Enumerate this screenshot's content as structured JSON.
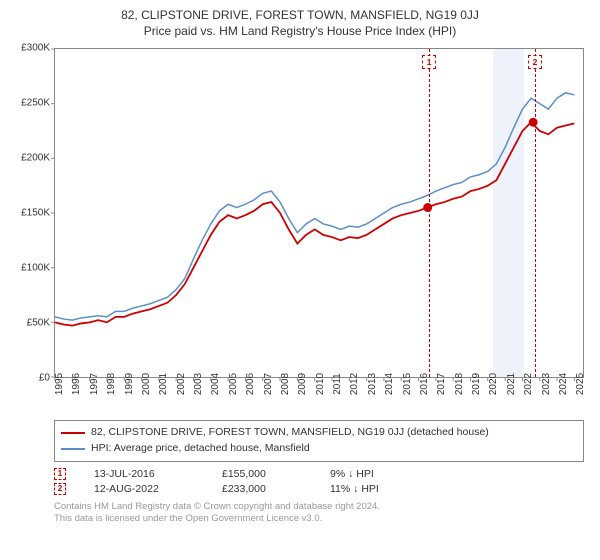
{
  "title": "82, CLIPSTONE DRIVE, FOREST TOWN, MANSFIELD, NG19 0JJ",
  "subtitle": "Price paid vs. HM Land Registry's House Price Index (HPI)",
  "chart": {
    "type": "line",
    "background_color": "#ffffff",
    "axis_color": "#888888",
    "x_years": [
      1995,
      1996,
      1997,
      1998,
      1999,
      2000,
      2001,
      2002,
      2003,
      2004,
      2005,
      2006,
      2007,
      2008,
      2009,
      2010,
      2011,
      2012,
      2013,
      2014,
      2015,
      2016,
      2017,
      2018,
      2019,
      2020,
      2021,
      2022,
      2023,
      2024,
      2025
    ],
    "xlim": [
      1995,
      2025.5
    ],
    "ylim": [
      0,
      300000
    ],
    "ytick_step": 50000,
    "yticks": [
      "£0",
      "£50K",
      "£100K",
      "£150K",
      "£200K",
      "£250K",
      "£300K"
    ],
    "highlight_band": {
      "start": 2020.2,
      "end": 2022.0,
      "color": "#eef3fb"
    },
    "series": [
      {
        "name": "82, CLIPSTONE DRIVE, FOREST TOWN, MANSFIELD, NG19 0JJ (detached house)",
        "color": "#cc0000",
        "width": 1.8,
        "data": [
          [
            1995,
            50000
          ],
          [
            1995.5,
            48000
          ],
          [
            1996,
            47000
          ],
          [
            1996.5,
            49000
          ],
          [
            1997,
            50000
          ],
          [
            1997.5,
            52000
          ],
          [
            1998,
            50000
          ],
          [
            1998.5,
            55000
          ],
          [
            1999,
            55000
          ],
          [
            1999.5,
            58000
          ],
          [
            2000,
            60000
          ],
          [
            2000.5,
            62000
          ],
          [
            2001,
            65000
          ],
          [
            2001.5,
            68000
          ],
          [
            2002,
            75000
          ],
          [
            2002.5,
            85000
          ],
          [
            2003,
            100000
          ],
          [
            2003.5,
            115000
          ],
          [
            2004,
            130000
          ],
          [
            2004.5,
            142000
          ],
          [
            2005,
            148000
          ],
          [
            2005.5,
            145000
          ],
          [
            2006,
            148000
          ],
          [
            2006.5,
            152000
          ],
          [
            2007,
            158000
          ],
          [
            2007.5,
            160000
          ],
          [
            2008,
            150000
          ],
          [
            2008.5,
            135000
          ],
          [
            2009,
            122000
          ],
          [
            2009.5,
            130000
          ],
          [
            2010,
            135000
          ],
          [
            2010.5,
            130000
          ],
          [
            2011,
            128000
          ],
          [
            2011.5,
            125000
          ],
          [
            2012,
            128000
          ],
          [
            2012.5,
            127000
          ],
          [
            2013,
            130000
          ],
          [
            2013.5,
            135000
          ],
          [
            2014,
            140000
          ],
          [
            2014.5,
            145000
          ],
          [
            2015,
            148000
          ],
          [
            2015.5,
            150000
          ],
          [
            2016,
            152000
          ],
          [
            2016.5,
            155000
          ],
          [
            2017,
            158000
          ],
          [
            2017.5,
            160000
          ],
          [
            2018,
            163000
          ],
          [
            2018.5,
            165000
          ],
          [
            2019,
            170000
          ],
          [
            2019.5,
            172000
          ],
          [
            2020,
            175000
          ],
          [
            2020.5,
            180000
          ],
          [
            2021,
            195000
          ],
          [
            2021.5,
            210000
          ],
          [
            2022,
            225000
          ],
          [
            2022.5,
            233000
          ],
          [
            2023,
            225000
          ],
          [
            2023.5,
            222000
          ],
          [
            2024,
            228000
          ],
          [
            2024.5,
            230000
          ],
          [
            2025,
            232000
          ]
        ]
      },
      {
        "name": "HPI: Average price, detached house, Mansfield",
        "color": "#5b8fc7",
        "width": 1.5,
        "data": [
          [
            1995,
            55000
          ],
          [
            1995.5,
            53000
          ],
          [
            1996,
            52000
          ],
          [
            1996.5,
            54000
          ],
          [
            1997,
            55000
          ],
          [
            1997.5,
            56000
          ],
          [
            1998,
            55000
          ],
          [
            1998.5,
            60000
          ],
          [
            1999,
            60000
          ],
          [
            1999.5,
            63000
          ],
          [
            2000,
            65000
          ],
          [
            2000.5,
            67000
          ],
          [
            2001,
            70000
          ],
          [
            2001.5,
            73000
          ],
          [
            2002,
            80000
          ],
          [
            2002.5,
            90000
          ],
          [
            2003,
            108000
          ],
          [
            2003.5,
            125000
          ],
          [
            2004,
            140000
          ],
          [
            2004.5,
            152000
          ],
          [
            2005,
            158000
          ],
          [
            2005.5,
            155000
          ],
          [
            2006,
            158000
          ],
          [
            2006.5,
            162000
          ],
          [
            2007,
            168000
          ],
          [
            2007.5,
            170000
          ],
          [
            2008,
            160000
          ],
          [
            2008.5,
            145000
          ],
          [
            2009,
            132000
          ],
          [
            2009.5,
            140000
          ],
          [
            2010,
            145000
          ],
          [
            2010.5,
            140000
          ],
          [
            2011,
            138000
          ],
          [
            2011.5,
            135000
          ],
          [
            2012,
            138000
          ],
          [
            2012.5,
            137000
          ],
          [
            2013,
            140000
          ],
          [
            2013.5,
            145000
          ],
          [
            2014,
            150000
          ],
          [
            2014.5,
            155000
          ],
          [
            2015,
            158000
          ],
          [
            2015.5,
            160000
          ],
          [
            2016,
            163000
          ],
          [
            2016.5,
            166000
          ],
          [
            2017,
            170000
          ],
          [
            2017.5,
            173000
          ],
          [
            2018,
            176000
          ],
          [
            2018.5,
            178000
          ],
          [
            2019,
            183000
          ],
          [
            2019.5,
            185000
          ],
          [
            2020,
            188000
          ],
          [
            2020.5,
            195000
          ],
          [
            2021,
            210000
          ],
          [
            2021.5,
            228000
          ],
          [
            2022,
            245000
          ],
          [
            2022.5,
            255000
          ],
          [
            2023,
            250000
          ],
          [
            2023.5,
            245000
          ],
          [
            2024,
            255000
          ],
          [
            2024.5,
            260000
          ],
          [
            2025,
            258000
          ]
        ]
      }
    ],
    "markers": [
      {
        "n": "1",
        "year": 2016.53,
        "value": 155000,
        "color": "#cc0000"
      },
      {
        "n": "2",
        "year": 2022.62,
        "value": 233000,
        "color": "#cc0000"
      }
    ]
  },
  "legend": {
    "items": [
      {
        "label": "82, CLIPSTONE DRIVE, FOREST TOWN, MANSFIELD, NG19 0JJ (detached house)",
        "color": "#cc0000"
      },
      {
        "label": "HPI: Average price, detached house, Mansfield",
        "color": "#5b8fc7"
      }
    ]
  },
  "sales": [
    {
      "n": "1",
      "date": "13-JUL-2016",
      "price": "£155,000",
      "delta": "9% ↓ HPI",
      "color": "#cc0000"
    },
    {
      "n": "2",
      "date": "12-AUG-2022",
      "price": "£233,000",
      "delta": "11% ↓ HPI",
      "color": "#cc0000"
    }
  ],
  "footer": {
    "line1": "Contains HM Land Registry data © Crown copyright and database right 2024.",
    "line2": "This data is licensed under the Open Government Licence v3.0."
  }
}
